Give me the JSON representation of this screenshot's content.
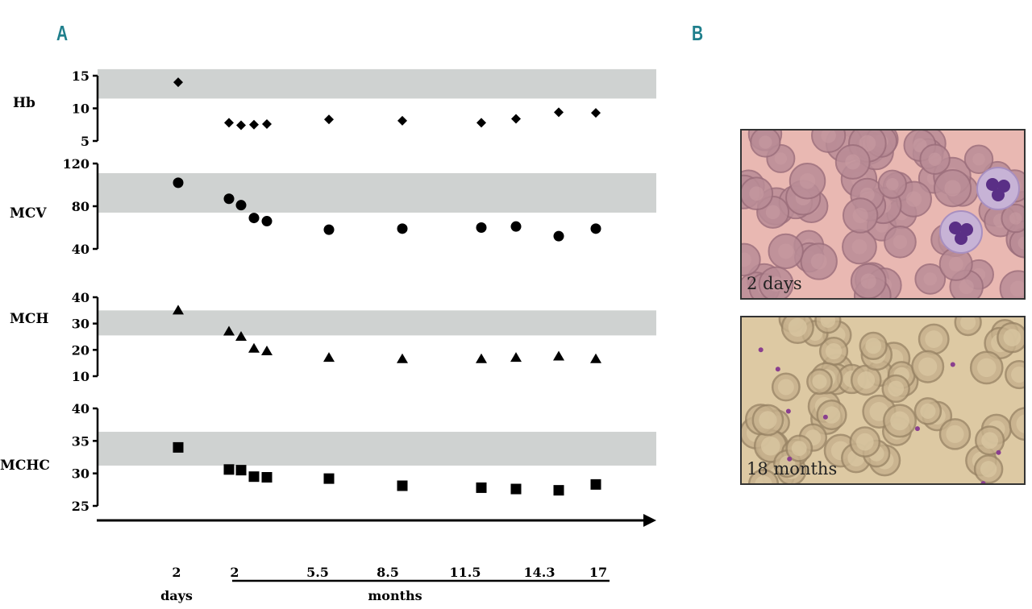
{
  "panels": {
    "a": "A",
    "b": "B"
  },
  "chart_data": {
    "type": "scatter",
    "x": [
      0,
      2,
      2.5,
      3,
      3.5,
      5.5,
      8.5,
      11.5,
      13,
      14.3,
      15.8
    ],
    "xtick_labels": [
      "2",
      "2",
      "5.5",
      "8.5",
      "11.5",
      "14.3",
      "17"
    ],
    "xunit_days": "days",
    "xunit_months": "months",
    "subplots": [
      {
        "name": "Hb",
        "ylim": [
          5,
          15
        ],
        "yticks": [
          "5",
          "10",
          "15"
        ],
        "ref_range": [
          11.5,
          16
        ],
        "values": [
          14,
          7.8,
          7.4,
          7.5,
          7.6,
          8.3,
          8.1,
          7.8,
          8.4,
          9.4,
          9.3
        ]
      },
      {
        "name": "MCV",
        "ylim": [
          40,
          120
        ],
        "yticks": [
          "40",
          "80",
          "120"
        ],
        "ref_range": [
          74,
          111
        ],
        "values": [
          102,
          87,
          81,
          69,
          66,
          58,
          59,
          60,
          61,
          52,
          59
        ]
      },
      {
        "name": "MCH",
        "ylim": [
          10,
          40
        ],
        "yticks": [
          "10",
          "20",
          "30",
          "40"
        ],
        "ref_range": [
          25.5,
          35
        ],
        "values": [
          35,
          27,
          25,
          20.5,
          19.5,
          17,
          16.5,
          16.5,
          17,
          17.5,
          16.5
        ]
      },
      {
        "name": "MCHC",
        "ylim": [
          25,
          40
        ],
        "yticks": [
          "25",
          "30",
          "35",
          "40"
        ],
        "ref_range": [
          31.2,
          36.4
        ],
        "values": [
          34,
          30.6,
          30.5,
          29.5,
          29.4,
          29.2,
          28.1,
          27.8,
          27.6,
          27.4,
          28.3
        ]
      }
    ],
    "grid": false,
    "legend": "none"
  },
  "micrographs": [
    {
      "label": "2 days",
      "bg": "#e9b8b2"
    },
    {
      "label": "18 months",
      "bg": "#ddc9a3"
    }
  ]
}
